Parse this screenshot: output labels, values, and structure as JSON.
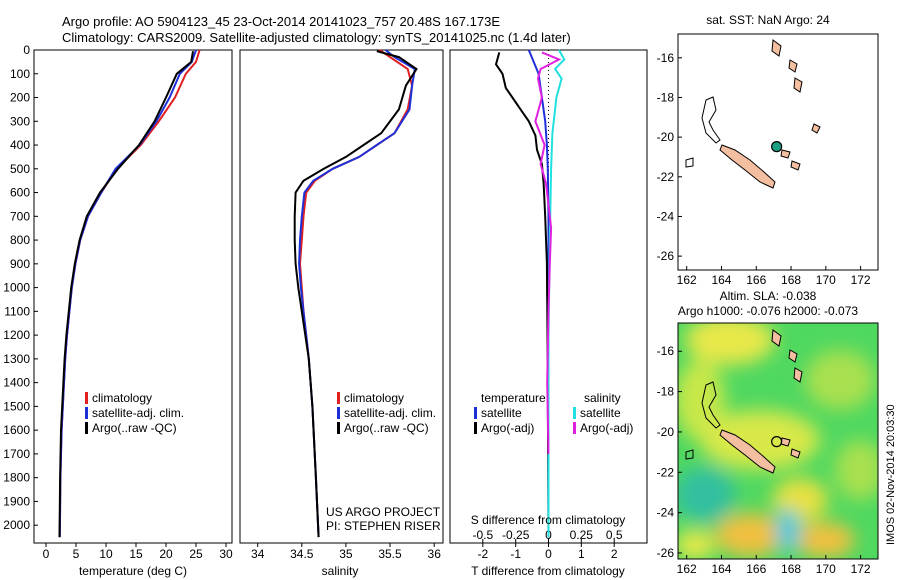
{
  "header": {
    "line1": "Argo profile: AO 5904123_45 23-Oct-2014 20141023_757 20.48S 167.173E",
    "line2": "Climatology: CARS2009. Satellite-adjusted climatology: synTS_20141025.nc (1.4d later)"
  },
  "colors": {
    "climatology": "#e02020",
    "satellite": "#1f2fd8",
    "argo": "#000000",
    "sat_salinity": "#20e0e0",
    "argo_salinity": "#e020e0",
    "land": "#f3bfa0",
    "float_marker": "#1aa080"
  },
  "panels": {
    "temperature": {
      "xlabel": "temperature (deg C)",
      "legend": [
        "climatology",
        "satellite-adj. clim.",
        "Argo(..raw -QC)"
      ]
    },
    "salinity": {
      "xlabel": "salinity",
      "legend": [
        "climatology",
        "satellite-adj. clim.",
        "Argo(..raw -QC)"
      ],
      "credit1": "US ARGO PROJECT",
      "credit2": "PI: STEPHEN RISER"
    },
    "difference": {
      "legend_head_t": "temperature",
      "legend_head_s": "salinity",
      "legend_t": [
        "satellite",
        "Argo(-adj)"
      ],
      "legend_s": [
        "satellite",
        "Argo(-adj)"
      ],
      "top_label": "S difference from climatology",
      "bottom_label": "T difference from climatology"
    },
    "map_sst": {
      "title": "sat. SST: NaN Argo: 24"
    },
    "map_sla": {
      "title1": "Altim. SLA: -0.038",
      "title2": "Argo h1000: -0.076 h2000: -0.073",
      "stamp": "IMOS 02-Nov-2014 20:03:30"
    }
  },
  "chart_data": [
    {
      "type": "line",
      "panel": "temperature",
      "xlabel": "temperature (deg C)",
      "ylabel": "",
      "xlim": [
        -2,
        31
      ],
      "ylim": [
        2075,
        0
      ],
      "xticks": [
        0,
        5,
        10,
        15,
        20,
        25,
        30
      ],
      "yticks": [
        0,
        100,
        200,
        300,
        400,
        500,
        600,
        700,
        800,
        900,
        1000,
        1100,
        1200,
        1300,
        1400,
        1500,
        1600,
        1700,
        1800,
        1900,
        2000
      ],
      "series": [
        {
          "name": "climatology",
          "color": "#e02020",
          "x": [
            25.6,
            25.0,
            23.3,
            21.5,
            18.8,
            15.8,
            11.8,
            9.2,
            7.0,
            5.7,
            4.9,
            4.3,
            3.9,
            3.5,
            3.2,
            3.0,
            2.8,
            2.6,
            2.4,
            2.3
          ],
          "y": [
            0,
            50,
            100,
            200,
            300,
            400,
            500,
            600,
            700,
            800,
            900,
            1000,
            1100,
            1200,
            1300,
            1400,
            1500,
            1600,
            1800,
            2050
          ]
        },
        {
          "name": "satellite-adj. clim.",
          "color": "#1f2fd8",
          "x": [
            25.0,
            24.3,
            22.3,
            20.6,
            18.4,
            15.6,
            11.6,
            9.2,
            7.0,
            5.7,
            4.9,
            4.3,
            3.9,
            3.5,
            3.2,
            3.0,
            2.8,
            2.6,
            2.4,
            2.3
          ],
          "y": [
            0,
            50,
            100,
            200,
            300,
            400,
            500,
            600,
            700,
            800,
            900,
            1000,
            1100,
            1200,
            1300,
            1400,
            1500,
            1600,
            1800,
            2050
          ]
        },
        {
          "name": "Argo(..raw -QC)",
          "color": "#000000",
          "x": [
            24.5,
            24.2,
            21.8,
            20.0,
            18.1,
            15.5,
            12.0,
            9.0,
            6.8,
            5.6,
            4.8,
            4.2,
            3.8,
            3.4,
            3.1,
            2.9,
            2.7,
            2.5,
            2.35,
            2.25
          ],
          "y": [
            5,
            50,
            100,
            200,
            300,
            400,
            500,
            600,
            700,
            800,
            900,
            1000,
            1100,
            1200,
            1300,
            1400,
            1500,
            1600,
            1800,
            2050
          ]
        }
      ]
    },
    {
      "type": "line",
      "panel": "salinity",
      "xlabel": "salinity",
      "ylabel": "",
      "xlim": [
        33.8,
        36.1
      ],
      "ylim": [
        2075,
        0
      ],
      "xticks": [
        34,
        34.5,
        35,
        35.5,
        36
      ],
      "series": [
        {
          "name": "climatology",
          "color": "#e02020",
          "x": [
            35.38,
            35.5,
            35.7,
            35.75,
            35.7,
            35.55,
            35.35,
            35.15,
            34.85,
            34.65,
            34.55,
            34.52,
            34.5,
            34.48,
            34.5,
            34.52,
            34.55,
            34.58,
            34.62,
            34.66,
            34.69
          ],
          "y": [
            0,
            30,
            80,
            150,
            250,
            350,
            400,
            450,
            500,
            550,
            600,
            700,
            800,
            900,
            1000,
            1100,
            1200,
            1300,
            1500,
            1800,
            2050
          ]
        },
        {
          "name": "satellite-adj. clim.",
          "color": "#1f2fd8",
          "x": [
            35.45,
            35.55,
            35.78,
            35.75,
            35.72,
            35.55,
            35.35,
            35.15,
            34.85,
            34.63,
            34.53,
            34.5,
            34.48,
            34.47,
            34.49,
            34.52,
            34.55,
            34.58,
            34.62,
            34.66,
            34.69
          ],
          "y": [
            0,
            30,
            80,
            150,
            250,
            350,
            400,
            450,
            500,
            550,
            600,
            700,
            800,
            900,
            1000,
            1100,
            1200,
            1300,
            1500,
            1800,
            2050
          ]
        },
        {
          "name": "Argo(..raw -QC)",
          "color": "#000000",
          "x": [
            35.35,
            35.6,
            35.8,
            35.68,
            35.6,
            35.4,
            35.2,
            35.0,
            34.75,
            34.52,
            34.43,
            34.42,
            34.42,
            34.43,
            34.46,
            34.5,
            34.54,
            34.58,
            34.62,
            34.66,
            34.69
          ],
          "y": [
            5,
            30,
            80,
            150,
            250,
            350,
            400,
            450,
            500,
            550,
            600,
            700,
            800,
            900,
            1000,
            1100,
            1200,
            1300,
            1500,
            1800,
            2050
          ]
        }
      ]
    },
    {
      "type": "line",
      "panel": "difference",
      "xlabel": "T difference from climatology",
      "xlabel_top": "S difference from climatology",
      "xlim_t": [
        -3,
        3
      ],
      "xticks_t": [
        -2,
        -1,
        0,
        1,
        2
      ],
      "xlim_s": [
        -0.75,
        0.75
      ],
      "xticks_s": [
        -0.5,
        -0.25,
        0,
        0.25,
        0.5
      ],
      "ylim": [
        2075,
        0
      ],
      "series": [
        {
          "name": "temperature satellite",
          "color": "#1f2fd8",
          "axis": "t",
          "x": [
            -0.6,
            -0.45,
            -0.3,
            -0.2,
            -0.1,
            -0.05,
            -0.02,
            0,
            0,
            0
          ],
          "y": [
            0,
            50,
            100,
            200,
            300,
            400,
            500,
            700,
            1000,
            2050
          ]
        },
        {
          "name": "temperature Argo(-adj)",
          "color": "#000000",
          "axis": "t",
          "x": [
            -1.5,
            -1.6,
            -1.4,
            -1.3,
            -1.1,
            -0.8,
            -0.6,
            -0.4,
            -0.35,
            -0.2,
            -0.15,
            -0.1,
            -0.05,
            -0.03,
            0
          ],
          "y": [
            10,
            60,
            100,
            160,
            200,
            260,
            300,
            360,
            420,
            480,
            560,
            700,
            900,
            1200,
            2050
          ]
        },
        {
          "name": "salinity satellite",
          "color": "#20e0e0",
          "axis": "s",
          "x": [
            0.08,
            0.12,
            0.05,
            0.1,
            0.06,
            0.03,
            0.02,
            0.01,
            0,
            0
          ],
          "y": [
            0,
            40,
            80,
            120,
            200,
            350,
            500,
            800,
            1200,
            2050
          ]
        },
        {
          "name": "salinity Argo(-adj)",
          "color": "#e020e0",
          "axis": "s",
          "x": [
            -0.05,
            0.08,
            -0.06,
            -0.08,
            -0.05,
            -0.1,
            -0.03,
            -0.06,
            -0.02,
            0,
            0.02,
            0.01,
            0,
            -0.01,
            0
          ],
          "y": [
            10,
            40,
            80,
            120,
            200,
            300,
            400,
            480,
            560,
            650,
            750,
            900,
            1100,
            1400,
            1700
          ]
        }
      ]
    },
    {
      "type": "scatter",
      "panel": "map_sst",
      "title": "sat. SST: NaN Argo: 24",
      "xlim": [
        161.5,
        173
      ],
      "xticks": [
        162,
        164,
        166,
        168,
        170,
        172
      ],
      "ylim": [
        -26.7,
        -14.8
      ],
      "yticks": [
        -16,
        -18,
        -20,
        -22,
        -24,
        -26
      ],
      "points": [
        {
          "label": "Argo float",
          "x": 167.173,
          "y": -20.48
        }
      ]
    },
    {
      "type": "heatmap",
      "panel": "map_sla",
      "title": "Altim. SLA: -0.038",
      "xlim": [
        161.5,
        173
      ],
      "xticks": [
        162,
        164,
        166,
        168,
        170,
        172
      ],
      "ylim": [
        -26.3,
        -14.6
      ],
      "yticks": [
        -16,
        -18,
        -20,
        -22,
        -24,
        -26
      ],
      "points": [
        {
          "label": "Argo float",
          "x": 167.173,
          "y": -20.48
        }
      ]
    }
  ]
}
